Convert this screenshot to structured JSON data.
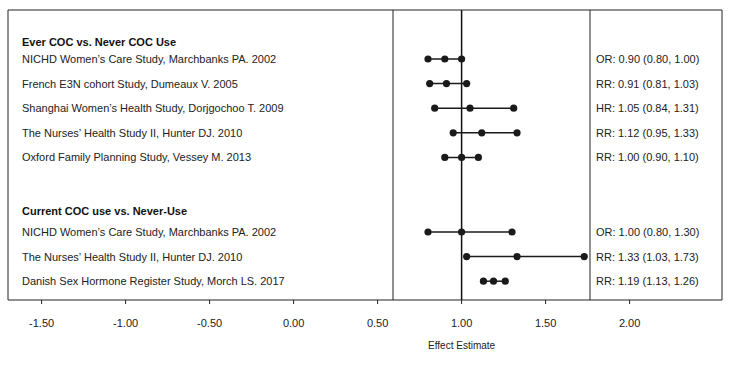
{
  "chart_data": {
    "type": "forest",
    "xlabel": "Effect Estimate",
    "xlim": [
      -1.7,
      2.55
    ],
    "xticks": [
      {
        "value": -1.5,
        "label": "-1.50"
      },
      {
        "value": -1,
        "label": "-1.00"
      },
      {
        "value": -0.5,
        "label": "-0.50"
      },
      {
        "value": 0,
        "label": "0.00"
      },
      {
        "value": 0.5,
        "label": "0.50"
      },
      {
        "value": 1,
        "label": "1.00"
      },
      {
        "value": 1.5,
        "label": "1.50"
      },
      {
        "value": 2,
        "label": "2.00"
      }
    ],
    "reference_value": 1,
    "color": "#1a1a1a",
    "marker": "circle",
    "groups": [
      {
        "title": "Ever COC vs. Never COC Use",
        "categories": [
          "NICHD Women’s Care  Study, Marchbanks PA. 2002",
          "French E3N cohort Study, Dumeaux V. 2005",
          "Shanghai Women’s Health Study, Dorjgochoo T. 2009",
          "The Nurses’ Health Study II, Hunter DJ. 2010",
          "Oxford Family Planning Study, Vessey M. 2013"
        ],
        "values": [
          0.9,
          0.91,
          1.05,
          1.12,
          1.0
        ],
        "lower": [
          0.8,
          0.81,
          0.84,
          0.95,
          0.9
        ],
        "upper": [
          1.0,
          1.03,
          1.31,
          1.33,
          1.1
        ],
        "value_labels": [
          "OR: 0.90 (0.80, 1.00)",
          "RR: 0.91 (0.81, 1.03)",
          "HR: 1.05 (0.84, 1.31)",
          "RR: 1.12 (0.95, 1.33)",
          "RR: 1.00 (0.90, 1.10)"
        ]
      },
      {
        "title": "Current COC use vs. Never-Use",
        "categories": [
          "NICHD Women’s Care Study, Marchbanks PA. 2002",
          "The Nurses’ Health Study II, Hunter DJ. 2010",
          "Danish Sex Hormone Register Study, Morch LS. 2017"
        ],
        "values": [
          1.0,
          1.33,
          1.19
        ],
        "lower": [
          0.8,
          1.03,
          1.13
        ],
        "upper": [
          1.3,
          1.73,
          1.26
        ],
        "value_labels": [
          "OR: 1.00 (0.80, 1.30)",
          "RR: 1.33 (1.03, 1.73)",
          "RR: 1.19 (1.13, 1.26)"
        ]
      }
    ]
  }
}
